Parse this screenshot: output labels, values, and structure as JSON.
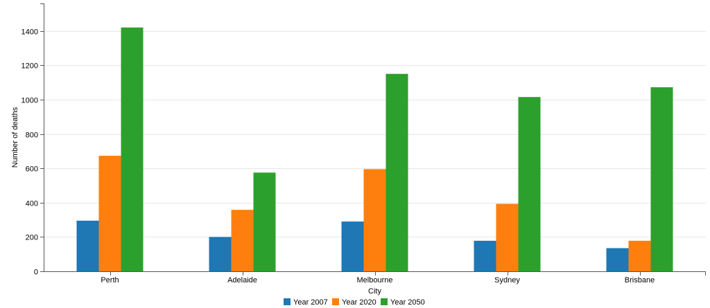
{
  "chart_data": {
    "type": "bar",
    "categories": [
      "Perth",
      "Adelaide",
      "Melbourne",
      "Sydney",
      "Brisbane"
    ],
    "series": [
      {
        "name": "Year 2007",
        "values": [
          295,
          200,
          290,
          178,
          135
        ],
        "color": "#1f77b4"
      },
      {
        "name": "Year 2020",
        "values": [
          673,
          358,
          595,
          393,
          178
        ],
        "color": "#ff7f0e"
      },
      {
        "name": "Year 2050",
        "values": [
          1420,
          575,
          1150,
          1015,
          1072
        ],
        "color": "#2ca02c"
      }
    ],
    "xlabel": "City",
    "ylabel": "Number of deaths",
    "ylim": [
      0,
      1560
    ],
    "yticks": [
      0,
      200,
      400,
      600,
      800,
      1000,
      1200,
      1400
    ],
    "grid": true,
    "legend_position": "bottom"
  }
}
